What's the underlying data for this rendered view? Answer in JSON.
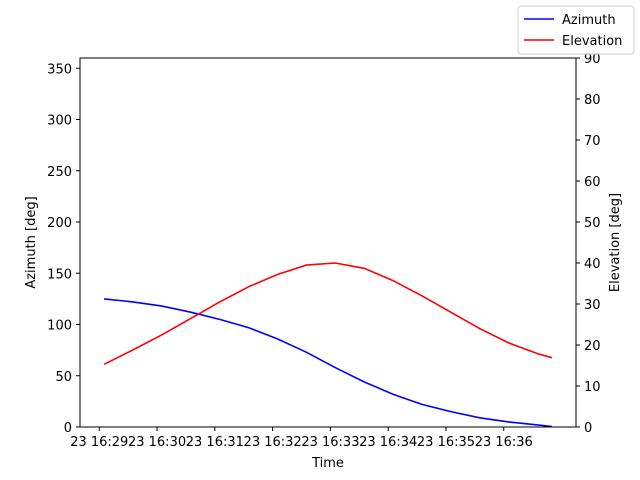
{
  "chart_data": {
    "type": "line",
    "title": "",
    "xlabel": "Time",
    "ylabel_left": "Azimuth [deg]",
    "ylabel_right": "Elevation [deg]",
    "x_tick_labels": [
      "23 16:29",
      "23 16:30",
      "23 16:31",
      "23 16:32",
      "23 16:33",
      "23 16:34",
      "23 16:35",
      "23 16:36"
    ],
    "x_tick_times": [
      "16:29",
      "16:30",
      "16:31",
      "16:32",
      "16:33",
      "16:34",
      "16:35",
      "16:36"
    ],
    "xlim_times": [
      "16:28:40",
      "16:37:15"
    ],
    "ylim_left": [
      0,
      360
    ],
    "yticks_left": [
      0,
      50,
      100,
      150,
      200,
      250,
      300,
      350
    ],
    "ylim_right": [
      0,
      90
    ],
    "yticks_right": [
      0,
      10,
      20,
      30,
      40,
      50,
      60,
      70,
      80,
      90
    ],
    "grid": false,
    "legend_position": "top-right",
    "series": [
      {
        "name": "Azimuth",
        "axis": "left",
        "color": "#0000ff",
        "x": [
          "16:29:05",
          "16:29:35",
          "16:30:05",
          "16:30:35",
          "16:31:05",
          "16:31:35",
          "16:32:05",
          "16:32:35",
          "16:33:05",
          "16:33:35",
          "16:34:05",
          "16:34:35",
          "16:35:05",
          "16:35:35",
          "16:36:05",
          "16:36:35",
          "16:36:50"
        ],
        "values": [
          125,
          122,
          118,
          112,
          105,
          97,
          86,
          73,
          58,
          44,
          32,
          22,
          15,
          9,
          5,
          2,
          0.5
        ]
      },
      {
        "name": "Elevation",
        "axis": "right",
        "color": "#ff0000",
        "x": [
          "16:29:05",
          "16:29:35",
          "16:30:05",
          "16:30:35",
          "16:31:05",
          "16:31:35",
          "16:32:05",
          "16:32:35",
          "16:33:05",
          "16:33:35",
          "16:34:05",
          "16:34:35",
          "16:35:05",
          "16:35:35",
          "16:36:05",
          "16:36:35",
          "16:36:50"
        ],
        "values": [
          15.3,
          18.8,
          22.5,
          26.5,
          30.5,
          34.2,
          37.2,
          39.5,
          40.0,
          38.7,
          35.7,
          32.0,
          28.0,
          24.0,
          20.5,
          17.9,
          16.9
        ]
      }
    ]
  }
}
